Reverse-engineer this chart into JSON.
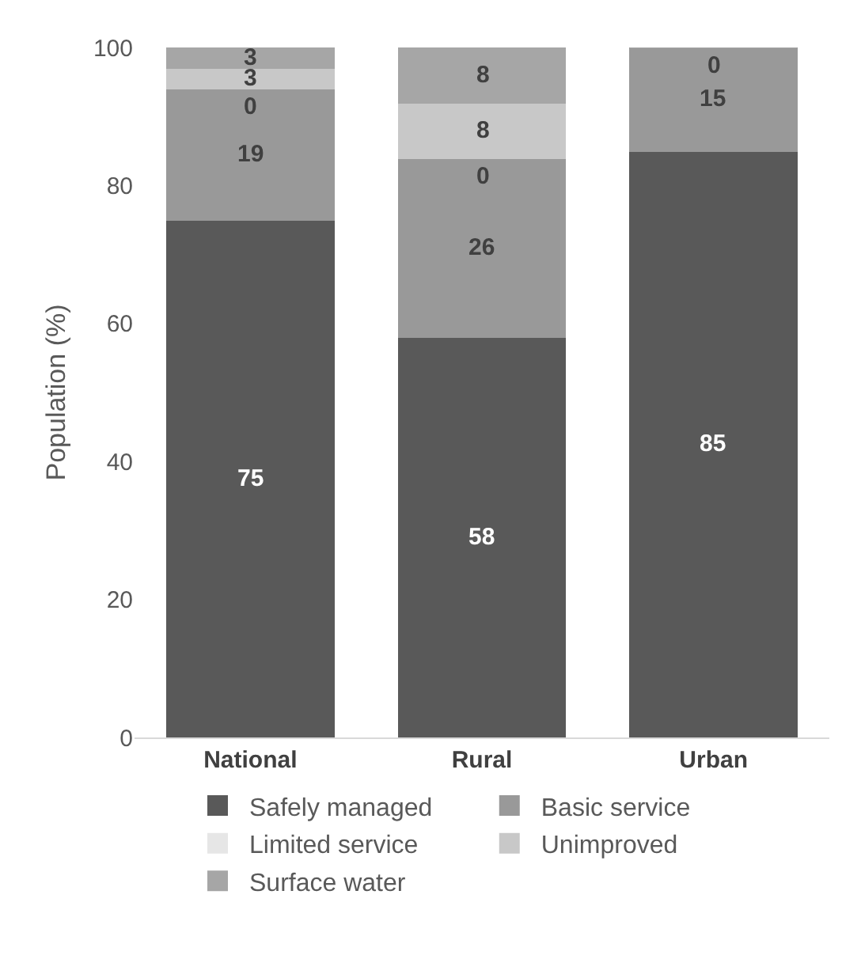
{
  "chart_data": {
    "type": "bar",
    "stacked": true,
    "ylabel": "Population (%)",
    "categories": [
      "National",
      "Rural",
      "Urban"
    ],
    "ylim": [
      0,
      100
    ],
    "yticks": [
      0,
      20,
      40,
      60,
      80,
      100
    ],
    "grid": false,
    "legend": "bottom",
    "series": [
      {
        "name": "Safely managed",
        "color": "#595959",
        "values": [
          75,
          58,
          85
        ],
        "value_labels": [
          "75",
          "58",
          "85"
        ]
      },
      {
        "name": "Basic service",
        "color": "#999999",
        "values": [
          19,
          26,
          15
        ],
        "value_labels": [
          "19",
          "26",
          "15"
        ]
      },
      {
        "name": "Limited service",
        "color": "#e6e6e6",
        "values": [
          0,
          0,
          0
        ],
        "value_labels": [
          "0",
          "0",
          null
        ]
      },
      {
        "name": "Unimproved",
        "color": "#c8c8c8",
        "values": [
          3,
          8,
          0
        ],
        "value_labels": [
          "3",
          "8",
          null
        ]
      },
      {
        "name": "Surface water",
        "color": "#a6a6a6",
        "values": [
          3,
          8,
          0
        ],
        "value_labels": [
          "3",
          "8",
          "0"
        ]
      }
    ]
  }
}
